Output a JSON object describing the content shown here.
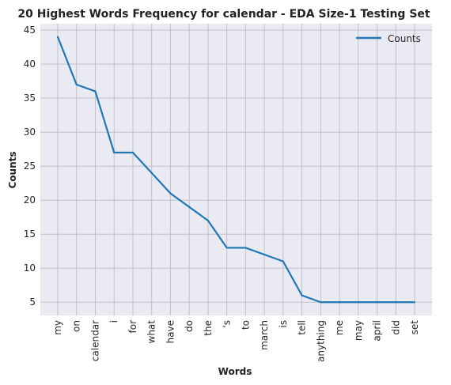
{
  "chart_data": {
    "type": "line",
    "title": "20 Highest Words Frequency for calendar - EDA Size-1 Testing Set",
    "xlabel": "Words",
    "ylabel": "Counts",
    "categories": [
      "my",
      "on",
      "calendar",
      "i",
      "for",
      "what",
      "have",
      "do",
      "the",
      "'s",
      "to",
      "march",
      "is",
      "tell",
      "anything",
      "me",
      "may",
      "april",
      "did",
      "set"
    ],
    "series": [
      {
        "name": "Counts",
        "values": [
          44,
          37,
          36,
          27,
          27,
          24,
          21,
          19,
          17,
          13,
          13,
          12,
          11,
          6,
          5,
          5,
          5,
          5,
          5,
          5
        ],
        "color": "#1f77b4"
      }
    ],
    "yticks": [
      5,
      10,
      15,
      20,
      25,
      30,
      35,
      40,
      45
    ],
    "ylim": [
      3.05,
      45.95
    ],
    "grid": true,
    "legend": "top-right",
    "background": "#eaeaf2",
    "grid_color": "#c0c0c6"
  }
}
